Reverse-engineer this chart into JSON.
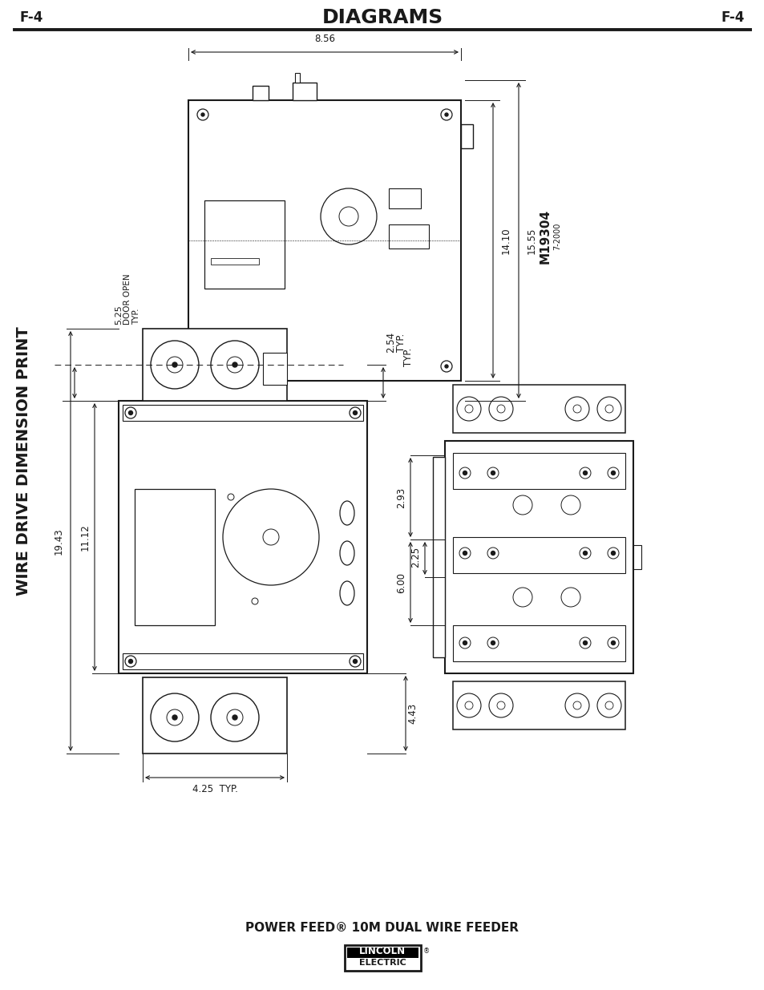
{
  "title": "DIAGRAMS",
  "page_code": "F-4",
  "side_text": "WIRE DRIVE DIMENSION PRINT",
  "footer_line1": "POWER FEED® 10M DUAL WIRE FEEDER",
  "bg_color": "#ffffff",
  "line_color": "#1a1a1a",
  "text_color": "#1a1a1a",
  "header_fontsize": 18,
  "page_code_fontsize": 12,
  "side_text_fontsize": 14,
  "footer_fontsize": 11,
  "dim_labels": {
    "top_width": "8.56",
    "top_height1": "14.10",
    "top_height2": "15.55",
    "door_open_val": "5.25",
    "door_open_txt": "DOOR OPEN",
    "door_open_typ": "TYP.",
    "typ_right_top": "TYP.",
    "dim_254": "2.54",
    "typ_254": "TYP.",
    "dim_225": "2.25",
    "dim_293": "2.93",
    "dim_600": "6.00",
    "dim_443": "4.43",
    "dim_1943": "19.43",
    "dim_1112": "11.12",
    "dim_425": "4.25",
    "typ_425": "TYP.",
    "model": "M19304",
    "model_sub": "7-2000"
  }
}
